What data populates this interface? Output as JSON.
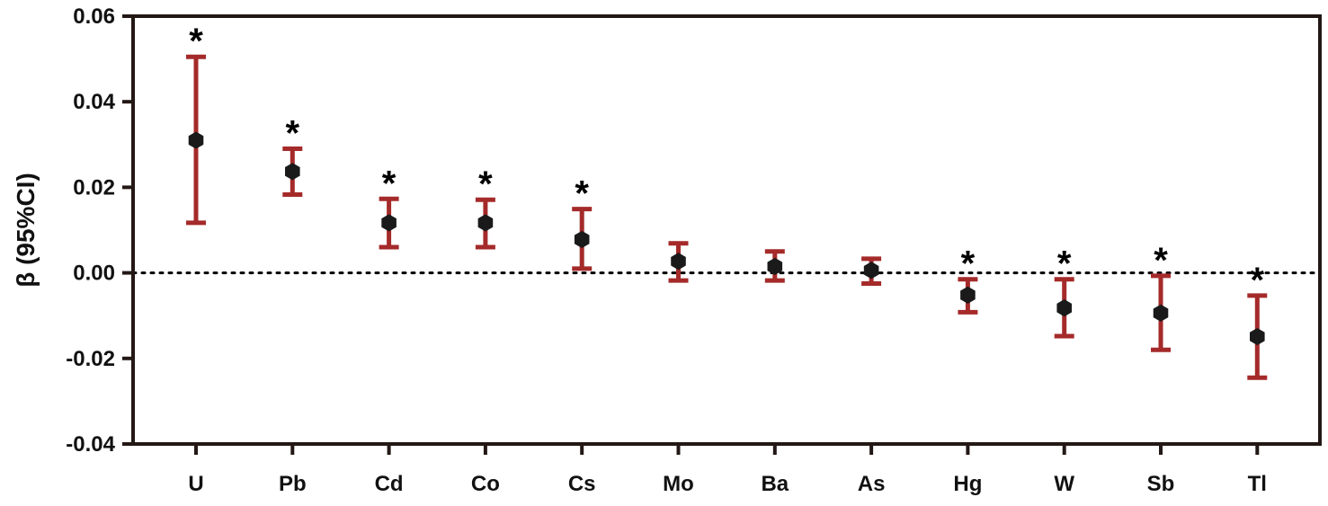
{
  "chart_data": {
    "type": "scatter",
    "title": "",
    "xlabel": "",
    "ylabel": "β (95%CI)",
    "ylim": [
      -0.04,
      0.06
    ],
    "yticks": [
      {
        "value": 0.06,
        "label": "0.06"
      },
      {
        "value": 0.04,
        "label": "0.04"
      },
      {
        "value": 0.02,
        "label": "0.02"
      },
      {
        "value": 0.0,
        "label": "0.00"
      },
      {
        "value": -0.02,
        "label": "-0.02"
      },
      {
        "value": -0.04,
        "label": "-0.04"
      }
    ],
    "reference_line": 0,
    "grid": false,
    "significance_marker": "*",
    "categories": [
      "U",
      "Pb",
      "Cd",
      "Co",
      "Cs",
      "Mo",
      "Ba",
      "As",
      "Hg",
      "W",
      "Sb",
      "Tl"
    ],
    "estimates": [
      0.031,
      0.0237,
      0.0117,
      0.0117,
      0.0078,
      0.0027,
      0.0015,
      0.0006,
      -0.0052,
      -0.0082,
      -0.0094,
      -0.0149
    ],
    "ci_lower": [
      0.0117,
      0.0183,
      0.006,
      0.006,
      0.001,
      -0.0018,
      -0.0018,
      -0.0025,
      -0.0092,
      -0.0148,
      -0.018,
      -0.0245
    ],
    "ci_upper": [
      0.0505,
      0.029,
      0.0173,
      0.0171,
      0.0149,
      0.0069,
      0.005,
      0.0033,
      -0.0015,
      -0.0015,
      -0.0007,
      -0.0053
    ],
    "significant": [
      true,
      true,
      true,
      true,
      true,
      false,
      false,
      false,
      true,
      true,
      true,
      true
    ]
  },
  "colors": {
    "ci_bar": "#a52a2a",
    "point": "#1a1a1a",
    "axis": "#231815",
    "text": "#111111"
  }
}
